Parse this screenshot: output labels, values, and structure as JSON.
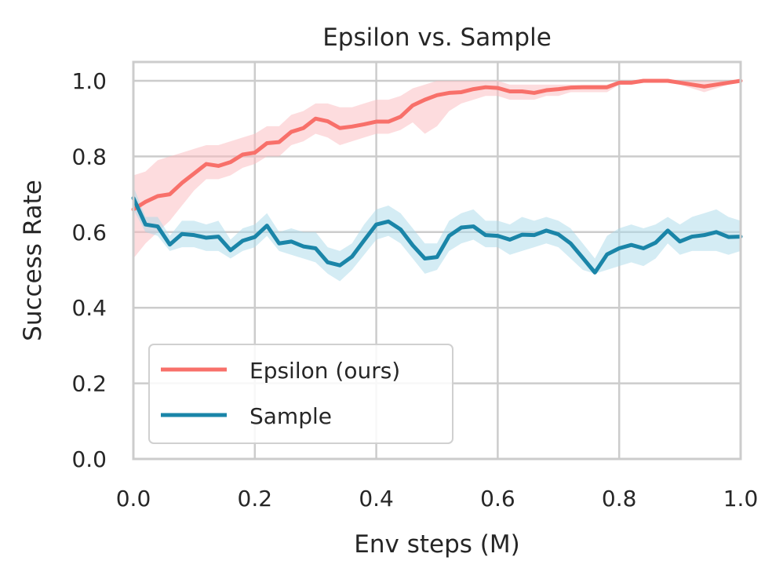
{
  "chart_data": {
    "type": "line",
    "title": "Epsilon vs. Sample",
    "xlabel": "Env steps (M)",
    "ylabel": "Success Rate",
    "xlim": [
      0.0,
      1.0
    ],
    "ylim": [
      0.0,
      1.0
    ],
    "xticks": [
      "0.0",
      "0.2",
      "0.4",
      "0.6",
      "0.8",
      "1.0"
    ],
    "yticks": [
      "0.0",
      "0.2",
      "0.4",
      "0.6",
      "0.8",
      "1.0"
    ],
    "grid": true,
    "legend_position": "lower-left",
    "x": [
      0.0,
      0.02,
      0.04,
      0.06,
      0.08,
      0.1,
      0.12,
      0.14,
      0.16,
      0.18,
      0.2,
      0.22,
      0.24,
      0.26,
      0.28,
      0.3,
      0.32,
      0.34,
      0.36,
      0.38,
      0.4,
      0.42,
      0.44,
      0.46,
      0.48,
      0.5,
      0.52,
      0.54,
      0.56,
      0.58,
      0.6,
      0.62,
      0.64,
      0.66,
      0.68,
      0.7,
      0.72,
      0.74,
      0.76,
      0.78,
      0.8,
      0.82,
      0.84,
      0.86,
      0.88,
      0.9,
      0.92,
      0.94,
      0.96,
      0.98,
      1.0
    ],
    "series": [
      {
        "name": "Epsilon (ours)",
        "color": "#f8706a",
        "band_color": "#fbb9bd",
        "values": [
          0.66,
          0.68,
          0.695,
          0.7,
          0.73,
          0.755,
          0.78,
          0.775,
          0.785,
          0.805,
          0.81,
          0.835,
          0.838,
          0.865,
          0.875,
          0.9,
          0.893,
          0.875,
          0.879,
          0.885,
          0.892,
          0.892,
          0.905,
          0.935,
          0.95,
          0.962,
          0.968,
          0.97,
          0.978,
          0.983,
          0.981,
          0.972,
          0.972,
          0.968,
          0.975,
          0.978,
          0.982,
          0.983,
          0.983,
          0.983,
          0.995,
          0.995,
          1.0,
          1.0,
          1.0,
          0.995,
          0.99,
          0.985,
          0.99,
          0.995,
          1.0
        ],
        "lower": [
          0.53,
          0.57,
          0.6,
          0.63,
          0.67,
          0.71,
          0.74,
          0.74,
          0.75,
          0.77,
          0.78,
          0.8,
          0.8,
          0.83,
          0.84,
          0.86,
          0.85,
          0.83,
          0.84,
          0.85,
          0.86,
          0.86,
          0.87,
          0.89,
          0.86,
          0.88,
          0.92,
          0.94,
          0.95,
          0.96,
          0.96,
          0.95,
          0.95,
          0.95,
          0.96,
          0.96,
          0.97,
          0.97,
          0.97,
          0.97,
          0.99,
          0.99,
          1.0,
          1.0,
          1.0,
          0.99,
          0.98,
          0.97,
          0.98,
          0.99,
          1.0
        ],
        "upper": [
          0.75,
          0.76,
          0.79,
          0.8,
          0.81,
          0.82,
          0.83,
          0.83,
          0.84,
          0.85,
          0.86,
          0.88,
          0.88,
          0.91,
          0.92,
          0.94,
          0.94,
          0.93,
          0.93,
          0.94,
          0.95,
          0.95,
          0.96,
          0.98,
          0.99,
          1.0,
          1.0,
          1.0,
          1.0,
          1.0,
          1.0,
          0.99,
          0.99,
          0.99,
          0.99,
          0.99,
          0.99,
          0.99,
          0.99,
          0.99,
          1.0,
          1.0,
          1.0,
          1.0,
          1.0,
          1.0,
          1.0,
          1.0,
          1.0,
          1.0,
          1.0
        ]
      },
      {
        "name": "Sample",
        "color": "#1a85a8",
        "band_color": "#a9d9e9",
        "values": [
          0.69,
          0.62,
          0.615,
          0.567,
          0.595,
          0.592,
          0.585,
          0.588,
          0.552,
          0.577,
          0.587,
          0.617,
          0.57,
          0.575,
          0.562,
          0.557,
          0.52,
          0.512,
          0.535,
          0.578,
          0.62,
          0.628,
          0.607,
          0.565,
          0.53,
          0.534,
          0.59,
          0.612,
          0.615,
          0.592,
          0.59,
          0.58,
          0.593,
          0.592,
          0.604,
          0.594,
          0.57,
          0.532,
          0.493,
          0.541,
          0.557,
          0.566,
          0.557,
          0.572,
          0.604,
          0.575,
          0.588,
          0.592,
          0.6,
          0.587,
          0.588
        ],
        "lower": [
          0.66,
          0.6,
          0.59,
          0.55,
          0.56,
          0.56,
          0.55,
          0.55,
          0.53,
          0.55,
          0.56,
          0.59,
          0.55,
          0.54,
          0.53,
          0.52,
          0.49,
          0.47,
          0.5,
          0.54,
          0.58,
          0.59,
          0.57,
          0.53,
          0.49,
          0.5,
          0.55,
          0.57,
          0.58,
          0.56,
          0.56,
          0.54,
          0.55,
          0.56,
          0.57,
          0.56,
          0.53,
          0.5,
          0.49,
          0.5,
          0.51,
          0.52,
          0.51,
          0.53,
          0.57,
          0.54,
          0.55,
          0.55,
          0.55,
          0.54,
          0.55
        ],
        "upper": [
          0.72,
          0.64,
          0.64,
          0.59,
          0.63,
          0.63,
          0.62,
          0.63,
          0.58,
          0.61,
          0.62,
          0.65,
          0.6,
          0.61,
          0.6,
          0.6,
          0.56,
          0.55,
          0.57,
          0.62,
          0.66,
          0.67,
          0.65,
          0.61,
          0.57,
          0.57,
          0.63,
          0.65,
          0.66,
          0.63,
          0.63,
          0.62,
          0.64,
          0.63,
          0.64,
          0.63,
          0.61,
          0.57,
          0.53,
          0.59,
          0.61,
          0.62,
          0.61,
          0.62,
          0.64,
          0.62,
          0.64,
          0.65,
          0.66,
          0.64,
          0.63
        ]
      }
    ]
  }
}
